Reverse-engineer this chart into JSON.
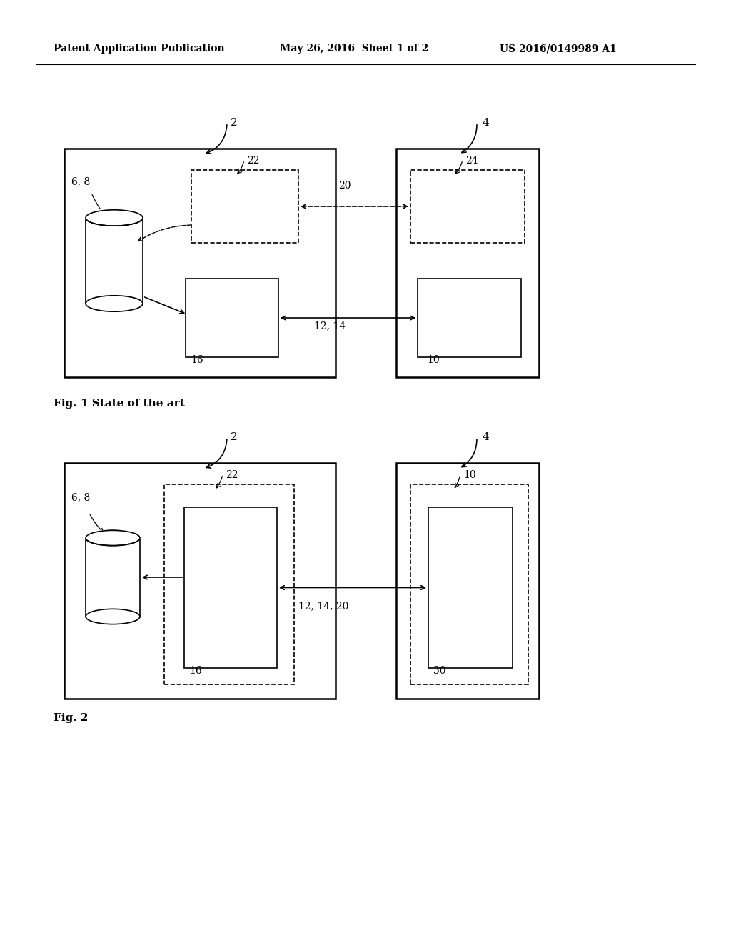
{
  "background_color": "#ffffff",
  "header_left": "Patent Application Publication",
  "header_center": "May 26, 2016  Sheet 1 of 2",
  "header_right": "US 2016/0149989 A1",
  "fig1_caption": "Fig. 1 State of the art",
  "fig2_caption": "Fig. 2",
  "fig1": {
    "label2": "2",
    "label4": "4",
    "label22": "22",
    "label24": "24",
    "label20": "20",
    "label16": "16",
    "label10": "10",
    "label12_14": "12, 14",
    "label6_8": "6, 8"
  },
  "fig2": {
    "label2": "2",
    "label4": "4",
    "label22": "22",
    "label10": "10",
    "label16": "16",
    "label30": "30",
    "label12_14_20": "12, 14, 20",
    "label6_8": "6, 8"
  }
}
